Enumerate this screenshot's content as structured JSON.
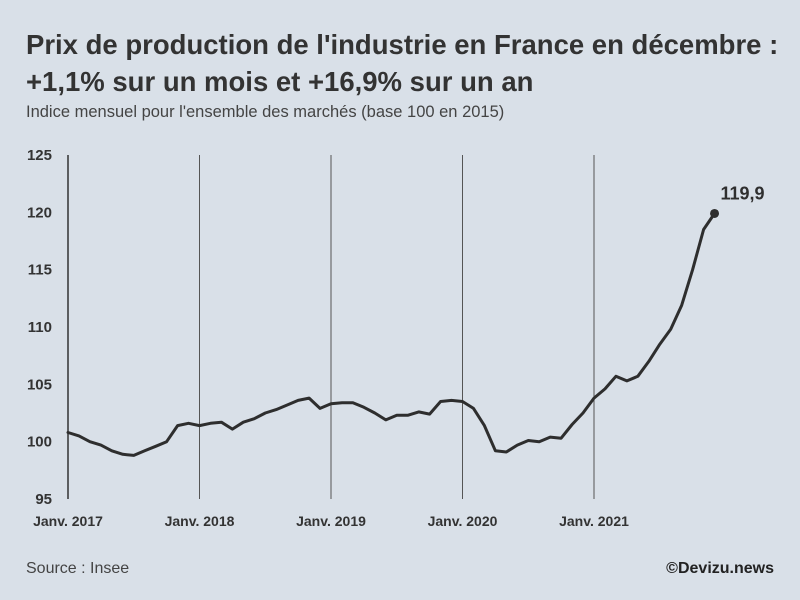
{
  "chart_data": {
    "type": "line",
    "title": "Prix de production de l'industrie en France en décembre : +1,1% sur un mois et +16,9% sur un an",
    "subtitle": "Indice mensuel pour l'ensemble des marchés (base 100 en 2015)",
    "xlabel": "",
    "ylabel": "",
    "ylim": [
      95,
      125
    ],
    "yticks": [
      95,
      100,
      105,
      110,
      115,
      120,
      125
    ],
    "x_start": "2017-01",
    "x_tick_labels": [
      "Janv. 2017",
      "Janv. 2018",
      "Janv. 2019",
      "Janv. 2020",
      "Janv. 2021"
    ],
    "x_tick_months": [
      0,
      12,
      24,
      36,
      48
    ],
    "series": [
      {
        "name": "Indice des prix de production de l'industrie",
        "values": [
          100.8,
          100.5,
          100.0,
          99.7,
          99.2,
          98.9,
          98.8,
          99.2,
          99.6,
          100.0,
          101.4,
          101.6,
          101.4,
          101.6,
          101.7,
          101.1,
          101.7,
          102.0,
          102.5,
          102.8,
          103.2,
          103.6,
          103.8,
          102.9,
          103.3,
          103.4,
          103.4,
          103.0,
          102.5,
          101.9,
          102.3,
          102.3,
          102.6,
          102.4,
          103.5,
          103.6,
          103.5,
          102.9,
          101.4,
          99.2,
          99.1,
          99.7,
          100.1,
          100.0,
          100.4,
          100.3,
          101.5,
          102.5,
          103.8,
          104.6,
          105.7,
          105.3,
          105.7,
          107.0,
          108.5,
          109.8,
          111.9,
          115.0,
          118.5,
          119.9
        ]
      }
    ],
    "end_label": "119,9"
  },
  "source": "Source : Insee",
  "credit": "©Devizu.news"
}
